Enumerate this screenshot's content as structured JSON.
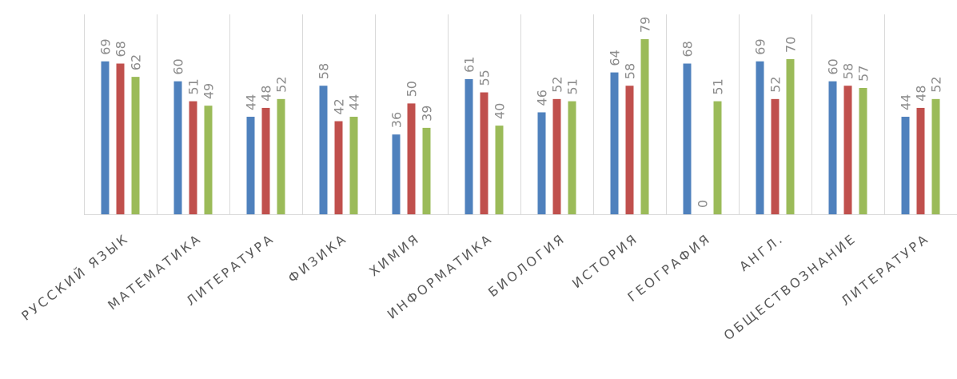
{
  "chart_data": {
    "type": "bar",
    "categories": [
      "РУССКИЙ ЯЗЫК",
      "МАТЕМАТИКА",
      "ЛИТЕРАТУРА",
      "ФИЗИКА",
      "ХИМИЯ",
      "ИНФОРМАТИКА",
      "БИОЛОГИЯ",
      "ИСТОРИЯ",
      "ГЕОГРАФИЯ",
      "АНГЛ.",
      "ОБЩЕСТВОЗНАНИЕ",
      "ЛИТЕРАТУРА"
    ],
    "series": [
      {
        "values": [
          69,
          60,
          44,
          58,
          36,
          61,
          46,
          64,
          68,
          69,
          60,
          44
        ],
        "color": "#4f81bd"
      },
      {
        "values": [
          68,
          51,
          48,
          42,
          50,
          55,
          52,
          58,
          0,
          52,
          58,
          48
        ],
        "color": "#c0504d"
      },
      {
        "values": [
          62,
          49,
          52,
          44,
          39,
          40,
          51,
          79,
          51,
          70,
          57,
          52
        ],
        "color": "#9bbb59"
      }
    ],
    "ylim": [
      0,
      79
    ],
    "grid": "vertical category separators",
    "legend": "none",
    "data_labels": true,
    "axis_color": "#d9d9d9"
  }
}
